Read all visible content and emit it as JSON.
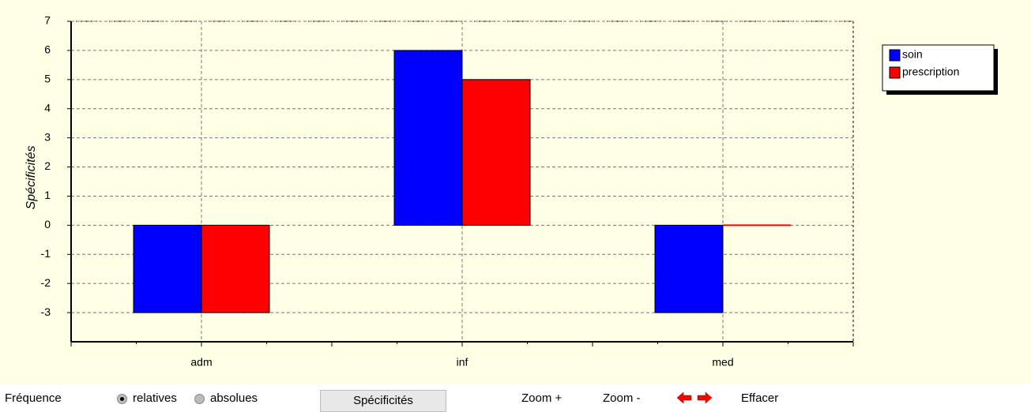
{
  "chart_data": {
    "type": "bar",
    "y_label": "Spécificités",
    "categories": [
      "adm",
      "inf",
      "med"
    ],
    "series": [
      {
        "name": "soin",
        "color": "#0000ff",
        "values": [
          -3,
          6,
          -3
        ]
      },
      {
        "name": "prescription",
        "color": "#ff0000",
        "values": [
          -3,
          5,
          0
        ]
      }
    ],
    "ylim": [
      -4,
      7
    ],
    "yticks": [
      -3,
      -2,
      -1,
      0,
      1,
      2,
      3,
      4,
      5,
      6,
      7
    ],
    "grid": true,
    "legend": "top-right"
  },
  "toolbar": {
    "frequency_label": "Fréquence",
    "options": [
      "relatives",
      "absolues"
    ],
    "selected": 0,
    "button": "Spécificités",
    "zoom_in": "Zoom +",
    "zoom_out": "Zoom -",
    "clear": "Effacer"
  }
}
